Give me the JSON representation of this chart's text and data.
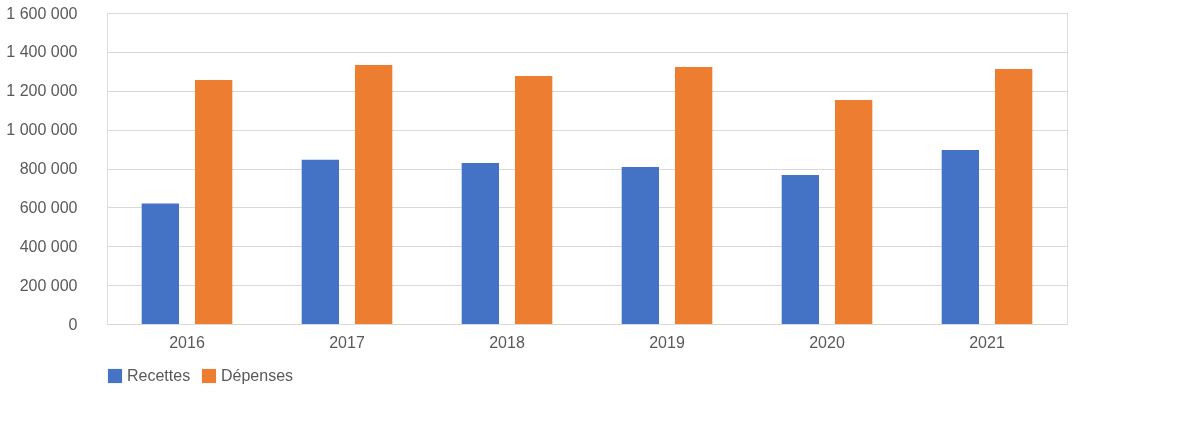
{
  "chart_data": {
    "type": "bar",
    "categories": [
      "2016",
      "2017",
      "2018",
      "2019",
      "2020",
      "2021"
    ],
    "series": [
      {
        "name": "Recettes",
        "color": "#4472c4",
        "values": [
          620000,
          845000,
          828000,
          808000,
          766000,
          895000
        ]
      },
      {
        "name": "Dépenses",
        "color": "#ed7d31",
        "values": [
          1255000,
          1332000,
          1276000,
          1322000,
          1152000,
          1312000
        ]
      }
    ],
    "ylim": [
      0,
      1600000
    ],
    "yticks": [
      0,
      {
        "value": 200000,
        "label": "200 000"
      },
      {
        "value": 400000,
        "label": "400 000"
      },
      {
        "value": 600000,
        "label": "600 000"
      },
      {
        "value": 800000,
        "label": "800 000"
      },
      {
        "value": 1000000,
        "label": "1 000 000"
      },
      {
        "value": 1200000,
        "label": "1 200 000"
      },
      {
        "value": 1400000,
        "label": "1 400 000"
      },
      {
        "value": 1600000,
        "label": "1 600 000"
      }
    ],
    "grid": "y",
    "legend": "bottom"
  }
}
